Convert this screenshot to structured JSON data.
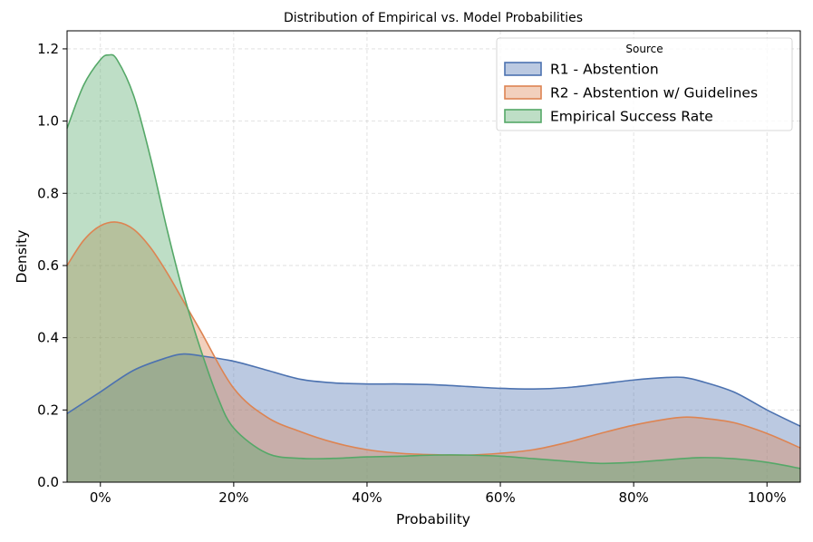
{
  "chart_data": {
    "type": "area",
    "title": "Distribution of Empirical vs. Model Probabilities",
    "xlabel": "Probability",
    "ylabel": "Density",
    "xlim": [
      -0.05,
      1.05
    ],
    "ylim": [
      0,
      1.25
    ],
    "xticks": [
      0,
      0.2,
      0.4,
      0.6,
      0.8,
      1.0
    ],
    "xtick_labels": [
      "0%",
      "20%",
      "40%",
      "60%",
      "80%",
      "100%"
    ],
    "yticks": [
      0,
      0.2,
      0.4,
      0.6,
      0.8,
      1.0,
      1.2
    ],
    "ytick_labels": [
      "0.0",
      "0.2",
      "0.4",
      "0.6",
      "0.8",
      "1.0",
      "1.2"
    ],
    "grid": true,
    "legend": {
      "title": "Source",
      "position": "top-right"
    },
    "series": [
      {
        "name": "R1 - Abstention",
        "color": "#4c72b0",
        "x": [
          -0.05,
          0.0,
          0.05,
          0.1,
          0.125,
          0.15,
          0.2,
          0.25,
          0.3,
          0.35,
          0.4,
          0.45,
          0.5,
          0.55,
          0.6,
          0.65,
          0.7,
          0.75,
          0.8,
          0.85,
          0.875,
          0.9,
          0.95,
          1.0,
          1.05
        ],
        "y": [
          0.19,
          0.25,
          0.31,
          0.345,
          0.355,
          0.35,
          0.335,
          0.31,
          0.285,
          0.275,
          0.272,
          0.272,
          0.27,
          0.265,
          0.26,
          0.258,
          0.262,
          0.272,
          0.283,
          0.29,
          0.29,
          0.28,
          0.25,
          0.2,
          0.155
        ]
      },
      {
        "name": "R2 - Abstention w/ Guidelines",
        "color": "#dd8452",
        "x": [
          -0.05,
          -0.025,
          0.0,
          0.025,
          0.05,
          0.075,
          0.1,
          0.125,
          0.15,
          0.2,
          0.25,
          0.3,
          0.35,
          0.4,
          0.45,
          0.5,
          0.55,
          0.6,
          0.65,
          0.7,
          0.75,
          0.8,
          0.85,
          0.875,
          0.9,
          0.95,
          1.0,
          1.05
        ],
        "y": [
          0.6,
          0.67,
          0.71,
          0.72,
          0.7,
          0.65,
          0.58,
          0.5,
          0.42,
          0.26,
          0.18,
          0.14,
          0.11,
          0.09,
          0.08,
          0.076,
          0.075,
          0.08,
          0.09,
          0.11,
          0.135,
          0.158,
          0.175,
          0.18,
          0.178,
          0.165,
          0.135,
          0.095
        ]
      },
      {
        "name": "Empirical Success Rate",
        "color": "#55a868",
        "x": [
          -0.05,
          -0.025,
          0.0,
          0.0125,
          0.025,
          0.05,
          0.075,
          0.1,
          0.125,
          0.15,
          0.175,
          0.2,
          0.25,
          0.3,
          0.35,
          0.4,
          0.45,
          0.5,
          0.55,
          0.6,
          0.65,
          0.7,
          0.75,
          0.8,
          0.85,
          0.9,
          0.95,
          1.0,
          1.05
        ],
        "y": [
          0.98,
          1.1,
          1.17,
          1.183,
          1.17,
          1.07,
          0.9,
          0.7,
          0.52,
          0.37,
          0.24,
          0.15,
          0.08,
          0.066,
          0.066,
          0.07,
          0.072,
          0.075,
          0.075,
          0.072,
          0.065,
          0.058,
          0.052,
          0.055,
          0.062,
          0.068,
          0.065,
          0.055,
          0.038
        ]
      }
    ]
  }
}
